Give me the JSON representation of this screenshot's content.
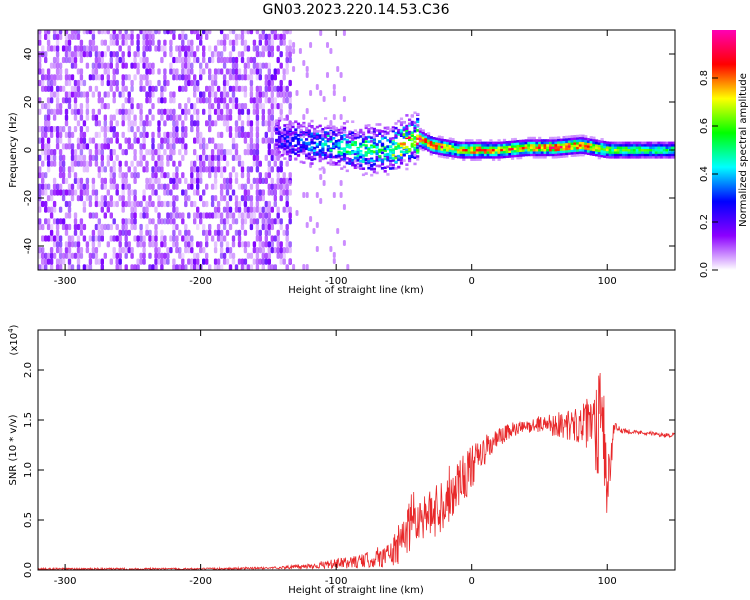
{
  "figure_title": "GN03.2023.220.14.53.C36",
  "chart_data": [
    {
      "type": "heatmap",
      "xlabel": "Height of straight line (km)",
      "ylabel": "Frequency (Hz)",
      "xlim": [
        -320,
        150
      ],
      "ylim": [
        -50,
        50
      ],
      "x_ticks": [
        -300,
        -200,
        -100,
        0,
        100
      ],
      "x_tick_labels": [
        "-300",
        "-200",
        "-100",
        "0",
        "100"
      ],
      "y_ticks": [
        -40,
        -20,
        0,
        20,
        40
      ],
      "y_tick_labels": [
        "-40",
        "-20",
        "0",
        "20",
        "40"
      ],
      "colorbar": {
        "label": "Normalized spectral amplitude",
        "range": [
          0,
          1
        ],
        "ticks": [
          0.0,
          0.2,
          0.4,
          0.6,
          0.8
        ],
        "tick_labels": [
          "0.0",
          "0.2",
          "0.4",
          "0.6",
          "0.8"
        ],
        "colors": [
          "#ffffff",
          "#8c00ff",
          "#0000ff",
          "#00ffff",
          "#00ff00",
          "#ffff00",
          "#ff0000",
          "#ff00b4"
        ]
      },
      "noise_region": {
        "x": [
          -320,
          -135
        ],
        "amplitude": 0.2
      },
      "signal_ridge": {
        "x": [
          -140,
          -120,
          -100,
          -80,
          -60,
          -50,
          -40,
          -30,
          -20,
          -10,
          0,
          20,
          40,
          60,
          80,
          100,
          120,
          150
        ],
        "freq": [
          5,
          3,
          2,
          0,
          0,
          4,
          5,
          2,
          1,
          0,
          0,
          0,
          1,
          1,
          2,
          0,
          0,
          0
        ],
        "amplitude": [
          0.25,
          0.35,
          0.45,
          0.5,
          0.55,
          0.7,
          0.85,
          0.8,
          0.75,
          0.7,
          0.78,
          0.75,
          0.72,
          0.82,
          0.8,
          0.6,
          0.55,
          0.5
        ]
      }
    },
    {
      "type": "line",
      "xlabel": "Height of straight line (km)",
      "ylabel": "SNR (10 * v/v)",
      "y_multiplier": "(x10",
      "y_multiplier_exp": "4",
      "y_multiplier_close": ")",
      "xlim": [
        -320,
        150
      ],
      "ylim": [
        0,
        2.4
      ],
      "x_ticks": [
        -300,
        -200,
        -100,
        0,
        100
      ],
      "x_tick_labels": [
        "-300",
        "-200",
        "-100",
        "0",
        "100"
      ],
      "y_ticks": [
        0,
        0.5,
        1.0,
        1.5,
        2.0
      ],
      "y_tick_labels": [
        "0.0",
        "0.5",
        "1.0",
        "1.5",
        "2.0"
      ],
      "color": "#e8282a",
      "series": [
        {
          "x": [
            -320,
            -250,
            -200,
            -150,
            -130,
            -110,
            -100,
            -80,
            -60,
            -50,
            -45,
            -40,
            -30,
            -20,
            -10,
            0,
            10,
            20,
            30,
            40,
            50,
            60,
            70,
            80,
            90,
            93,
            95,
            97,
            100,
            105,
            110,
            120,
            130,
            140,
            150
          ],
          "y": [
            0.01,
            0.01,
            0.01,
            0.02,
            0.03,
            0.05,
            0.06,
            0.09,
            0.16,
            0.3,
            0.55,
            0.52,
            0.55,
            0.7,
            0.88,
            1.02,
            1.2,
            1.32,
            1.4,
            1.43,
            1.46,
            1.46,
            1.45,
            1.45,
            1.45,
            1.4,
            1.9,
            1.5,
            0.8,
            1.42,
            1.4,
            1.38,
            1.37,
            1.35,
            1.35
          ],
          "noise": [
            0.01,
            0.01,
            0.01,
            0.01,
            0.02,
            0.04,
            0.05,
            0.07,
            0.14,
            0.25,
            0.35,
            0.2,
            0.25,
            0.3,
            0.28,
            0.22,
            0.15,
            0.1,
            0.08,
            0.06,
            0.08,
            0.12,
            0.15,
            0.18,
            0.35,
            0.55,
            0.5,
            0.55,
            0.4,
            0.06,
            0.03,
            0.02,
            0.02,
            0.02,
            0.02
          ]
        }
      ]
    }
  ]
}
